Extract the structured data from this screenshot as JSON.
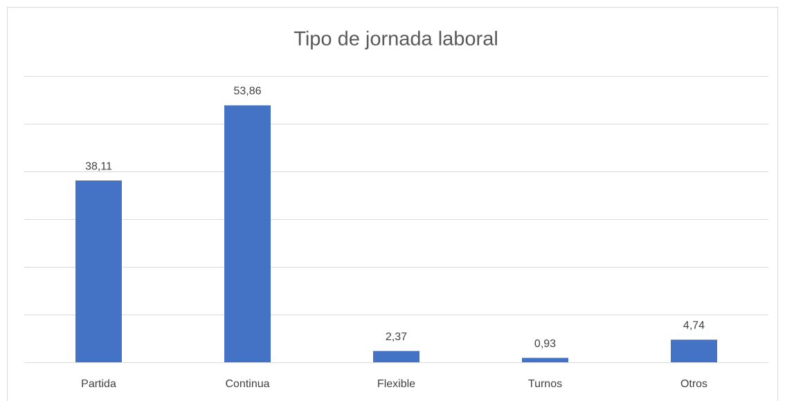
{
  "chart_data": {
    "type": "bar",
    "title": "Tipo de jornada laboral",
    "categories": [
      "Partida",
      "Continua",
      "Flexible",
      "Turnos",
      "Otros"
    ],
    "values": [
      38.11,
      53.86,
      2.37,
      0.93,
      4.74
    ],
    "value_labels": [
      "38,11",
      "53,86",
      "2,37",
      "0,93",
      "4,74"
    ],
    "color": "#4472c4",
    "ylim": [
      0,
      60
    ],
    "yticks": [
      0,
      10,
      20,
      30,
      40,
      50,
      60
    ],
    "grid": true
  }
}
